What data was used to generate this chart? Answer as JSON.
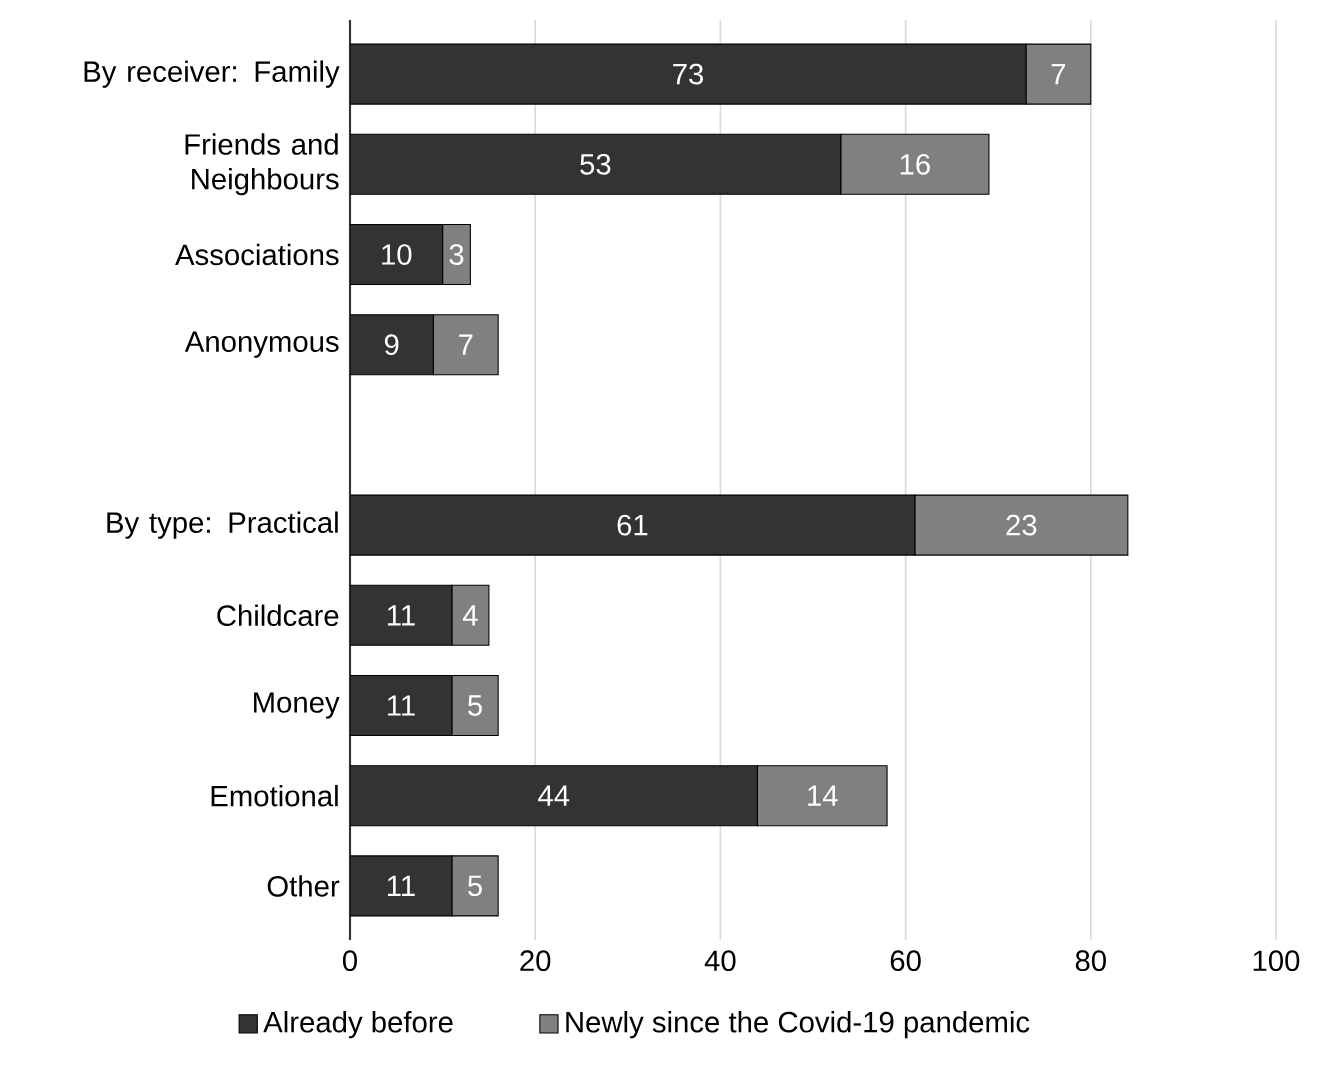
{
  "chart_data": {
    "type": "bar",
    "orientation": "horizontal",
    "stacked": true,
    "data_labels": true,
    "grid": "x",
    "legend": "bottom",
    "categories": [
      "By receiver: Family",
      "Friends and Neighbours",
      "Associations",
      "Anonymous",
      null,
      "By type: Practical",
      "Childcare",
      "Money",
      "Emotional",
      "Other"
    ],
    "series": [
      {
        "name": "Already before",
        "color": "#333333",
        "values": [
          73,
          53,
          10,
          9,
          null,
          61,
          11,
          11,
          44,
          11
        ]
      },
      {
        "name": "Newly since the Covid-19 pandemic",
        "color": "#808080",
        "values": [
          7,
          16,
          3,
          7,
          null,
          23,
          4,
          5,
          14,
          5
        ]
      }
    ],
    "xlim": [
      0,
      100
    ],
    "xticks": [
      0,
      20,
      40,
      60,
      80,
      100
    ]
  }
}
